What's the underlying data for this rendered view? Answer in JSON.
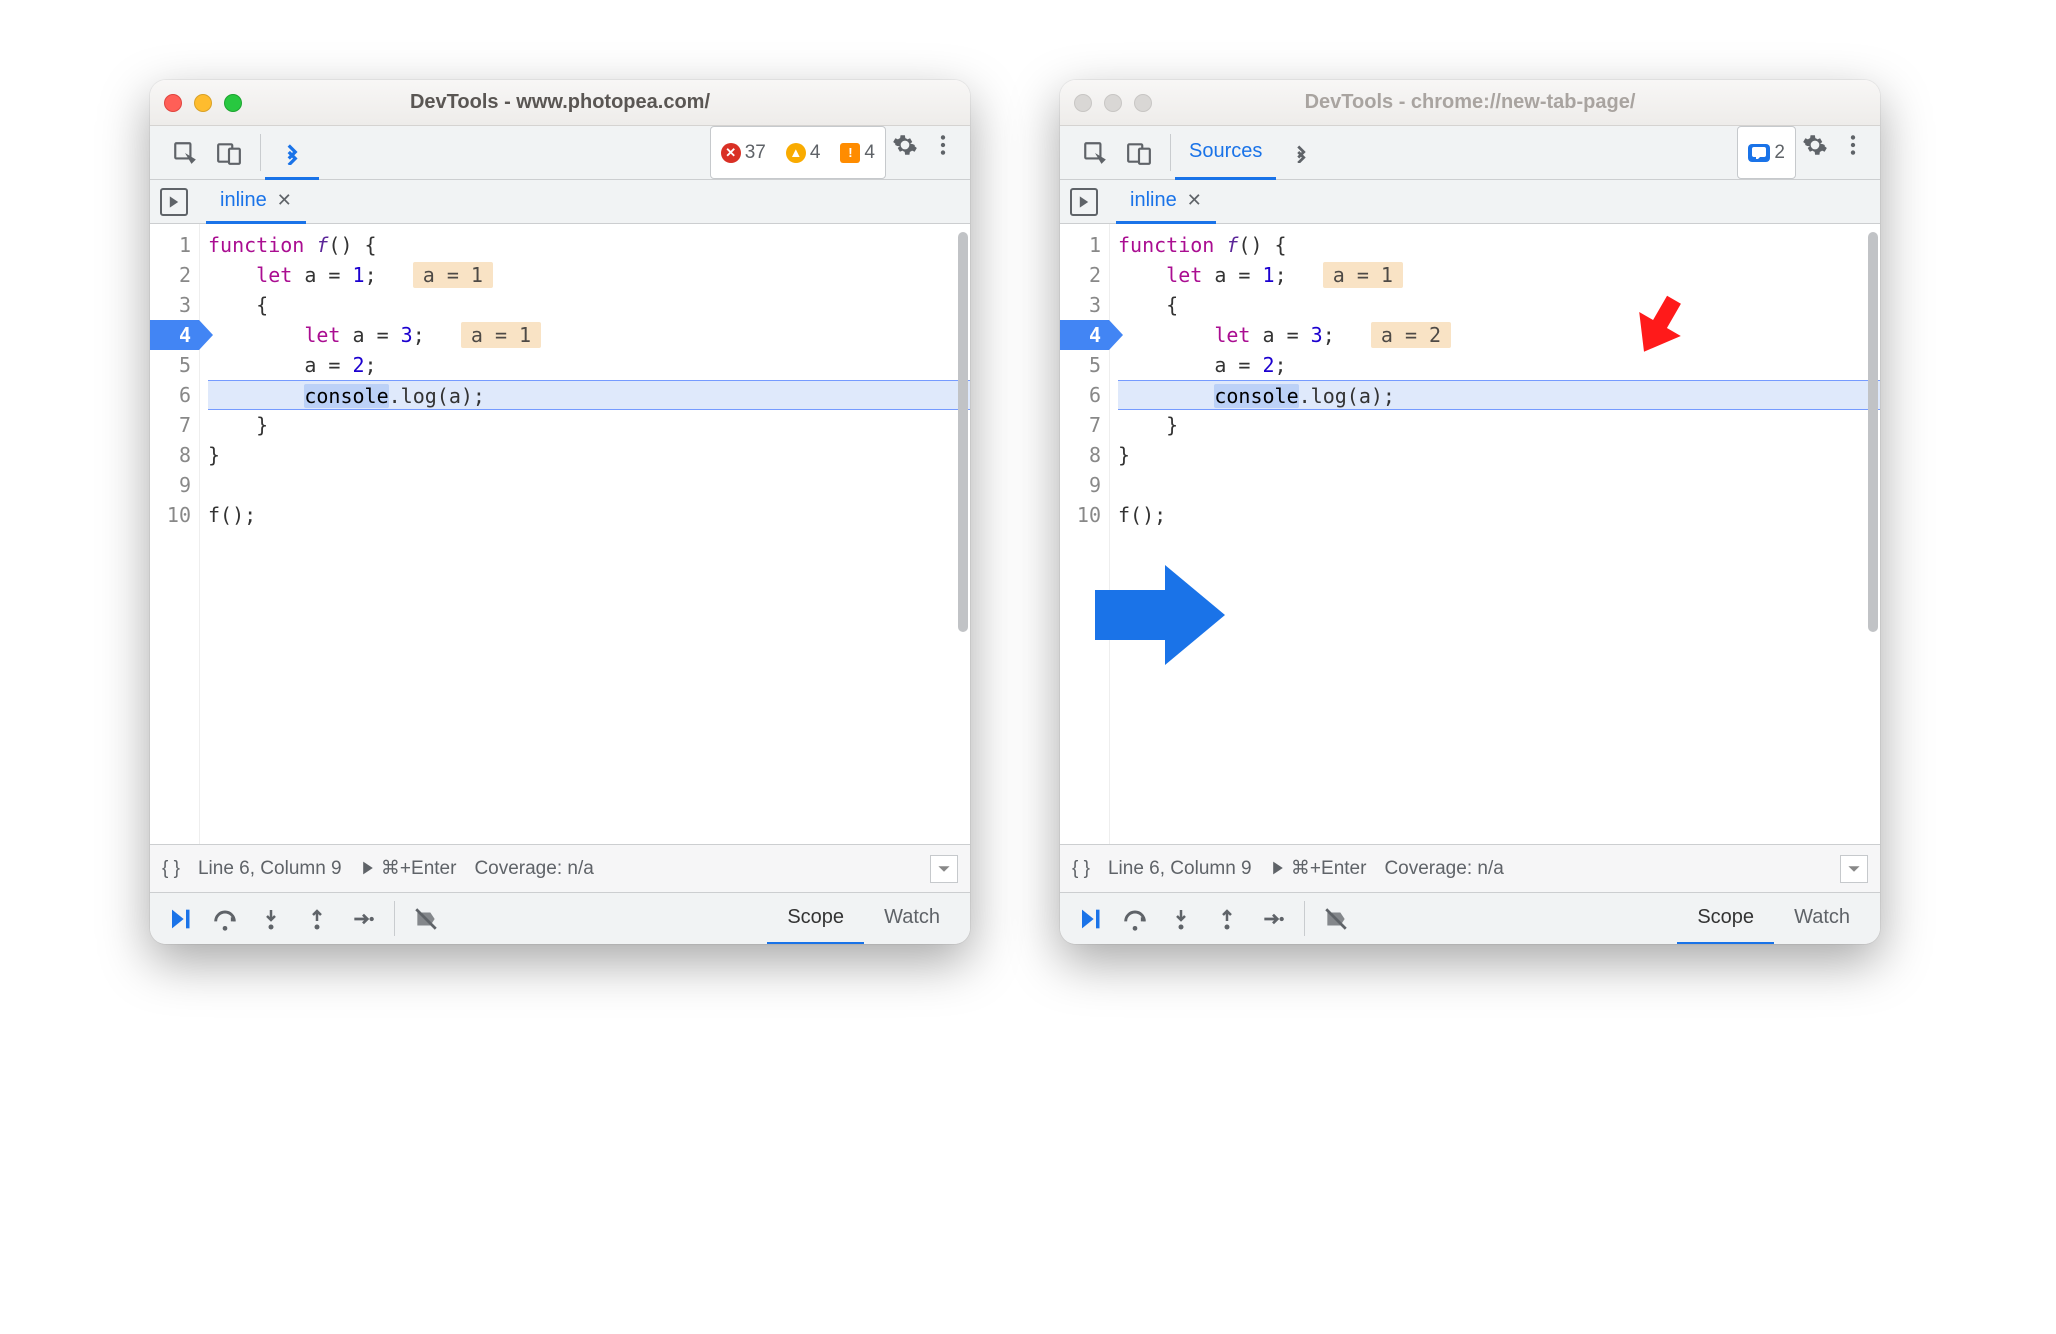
{
  "windows": {
    "left": {
      "title": "DevTools - www.photopea.com/",
      "active": true,
      "badges": {
        "errors": "37",
        "warnings": "4",
        "issues": "4"
      },
      "sources_tab_visible": false,
      "file_tab": "inline",
      "inline_val_line4": "a = 1"
    },
    "right": {
      "title": "DevTools - chrome://new-tab-page/",
      "active": false,
      "messages": "2",
      "sources_label": "Sources",
      "file_tab": "inline",
      "inline_val_line4": "a = 2"
    }
  },
  "code": {
    "lines": [
      {
        "n": "1",
        "indent": 0,
        "tokens": [
          [
            "kw",
            "function"
          ],
          [
            "plain",
            " "
          ],
          [
            "fn",
            "f"
          ],
          [
            "plain",
            "() {"
          ]
        ]
      },
      {
        "n": "2",
        "indent": 1,
        "tokens": [
          [
            "kw",
            "let"
          ],
          [
            "plain",
            " a = "
          ],
          [
            "num",
            "1"
          ],
          [
            "plain",
            ";"
          ]
        ],
        "inline": "a = 1"
      },
      {
        "n": "3",
        "indent": 1,
        "tokens": [
          [
            "plain",
            "{"
          ]
        ]
      },
      {
        "n": "4",
        "indent": 2,
        "tokens": [
          [
            "kw",
            "let"
          ],
          [
            "plain",
            " a = "
          ],
          [
            "num",
            "3"
          ],
          [
            "plain",
            ";"
          ]
        ],
        "exec": true,
        "inline_slot": true
      },
      {
        "n": "5",
        "indent": 2,
        "tokens": [
          [
            "plain",
            "a = "
          ],
          [
            "num",
            "2"
          ],
          [
            "plain",
            ";"
          ]
        ]
      },
      {
        "n": "6",
        "indent": 2,
        "tokens": [
          [
            "sel",
            "console"
          ],
          [
            "plain",
            ".log(a);"
          ]
        ],
        "hl": true
      },
      {
        "n": "7",
        "indent": 1,
        "tokens": [
          [
            "plain",
            "}"
          ]
        ]
      },
      {
        "n": "8",
        "indent": 0,
        "tokens": [
          [
            "plain",
            "}"
          ]
        ]
      },
      {
        "n": "9",
        "indent": 0,
        "tokens": []
      },
      {
        "n": "10",
        "indent": 0,
        "tokens": [
          [
            "plain",
            "f();"
          ]
        ]
      }
    ]
  },
  "status": {
    "braces": "{ }",
    "pos": "Line 6, Column 9",
    "run_hint": "⌘+Enter",
    "coverage": "Coverage: n/a"
  },
  "dbg_tabs": {
    "scope": "Scope",
    "watch": "Watch"
  },
  "colors": {
    "arrow_blue": "#1a73e8",
    "arrow_red": "#ff1a1a",
    "exec_blue": "#4285f4",
    "inline_bg": "#f9e3c5",
    "hl_bg": "#dfe9fb"
  }
}
